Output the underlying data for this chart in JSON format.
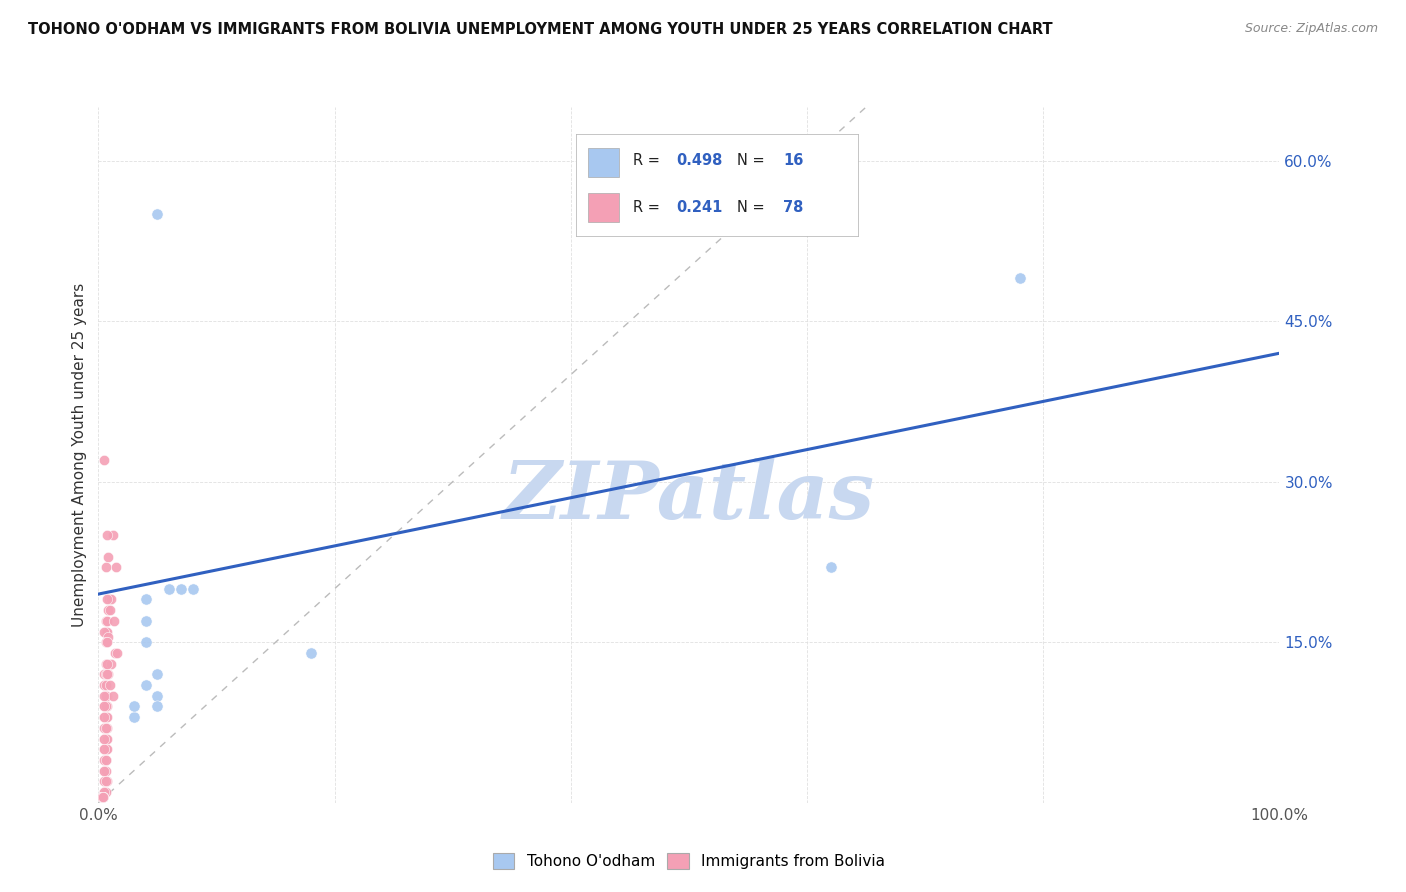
{
  "title": "TOHONO O'ODHAM VS IMMIGRANTS FROM BOLIVIA UNEMPLOYMENT AMONG YOUTH UNDER 25 YEARS CORRELATION CHART",
  "source": "Source: ZipAtlas.com",
  "ylabel": "Unemployment Among Youth under 25 years",
  "legend_blue_label": "Tohono O'odham",
  "legend_pink_label": "Immigrants from Bolivia",
  "legend_blue_R": "0.498",
  "legend_blue_N": "16",
  "legend_pink_R": "0.241",
  "legend_pink_N": "78",
  "xlim": [
    0,
    1.0
  ],
  "ylim": [
    0,
    0.65
  ],
  "xticks": [
    0.0,
    0.2,
    0.4,
    0.6,
    0.8,
    1.0
  ],
  "yticks": [
    0.0,
    0.15,
    0.3,
    0.45,
    0.6
  ],
  "xtick_labels_show": [
    "0.0%",
    "100.0%"
  ],
  "xtick_show_positions": [
    0.0,
    1.0
  ],
  "ytick_labels": [
    "",
    "15.0%",
    "30.0%",
    "45.0%",
    "60.0%"
  ],
  "blue_scatter_x": [
    0.05,
    0.78,
    0.04,
    0.18,
    0.62,
    0.04,
    0.07,
    0.08,
    0.05,
    0.03,
    0.04,
    0.05,
    0.03,
    0.05,
    0.06,
    0.04
  ],
  "blue_scatter_y": [
    0.55,
    0.49,
    0.15,
    0.14,
    0.22,
    0.19,
    0.2,
    0.2,
    0.1,
    0.08,
    0.11,
    0.09,
    0.09,
    0.12,
    0.2,
    0.17
  ],
  "pink_scatter_x": [
    0.005,
    0.012,
    0.007,
    0.008,
    0.015,
    0.006,
    0.009,
    0.011,
    0.007,
    0.008,
    0.01,
    0.006,
    0.007,
    0.013,
    0.006,
    0.007,
    0.005,
    0.008,
    0.006,
    0.007,
    0.014,
    0.016,
    0.006,
    0.011,
    0.007,
    0.005,
    0.006,
    0.008,
    0.007,
    0.005,
    0.006,
    0.01,
    0.007,
    0.006,
    0.012,
    0.005,
    0.006,
    0.007,
    0.005,
    0.006,
    0.005,
    0.006,
    0.005,
    0.007,
    0.005,
    0.006,
    0.005,
    0.007,
    0.006,
    0.005,
    0.006,
    0.007,
    0.005,
    0.006,
    0.005,
    0.007,
    0.005,
    0.006,
    0.005,
    0.006,
    0.005,
    0.006,
    0.005,
    0.007,
    0.005,
    0.006,
    0.005,
    0.006,
    0.005,
    0.004,
    0.003,
    0.004,
    0.003,
    0.004,
    0.003,
    0.004,
    0.003,
    0.004
  ],
  "pink_scatter_y": [
    0.32,
    0.25,
    0.25,
    0.23,
    0.22,
    0.22,
    0.19,
    0.19,
    0.19,
    0.18,
    0.18,
    0.17,
    0.17,
    0.17,
    0.16,
    0.16,
    0.16,
    0.155,
    0.15,
    0.15,
    0.14,
    0.14,
    0.13,
    0.13,
    0.13,
    0.12,
    0.12,
    0.12,
    0.12,
    0.11,
    0.11,
    0.11,
    0.1,
    0.1,
    0.1,
    0.1,
    0.09,
    0.09,
    0.09,
    0.09,
    0.09,
    0.08,
    0.08,
    0.08,
    0.08,
    0.07,
    0.07,
    0.07,
    0.07,
    0.06,
    0.06,
    0.06,
    0.06,
    0.05,
    0.05,
    0.05,
    0.05,
    0.04,
    0.04,
    0.04,
    0.03,
    0.03,
    0.03,
    0.02,
    0.02,
    0.02,
    0.01,
    0.01,
    0.01,
    0.005,
    0.005,
    0.005,
    0.005,
    0.005,
    0.005,
    0.005,
    0.005,
    0.005
  ],
  "blue_line_x": [
    0.0,
    1.0
  ],
  "blue_line_y": [
    0.195,
    0.42
  ],
  "diag_line_x": [
    0.0,
    0.65
  ],
  "diag_line_y": [
    0.0,
    0.65
  ],
  "blue_scatter_color": "#A8C8F0",
  "pink_scatter_color": "#F4A0B5",
  "blue_line_color": "#3060C0",
  "diag_line_color": "#BBBBBB",
  "background_color": "#FFFFFF",
  "watermark_text": "ZIPatlas",
  "watermark_color": "#C8D8F0",
  "grid_color": "#E0E0E0",
  "title_color": "#111111",
  "source_color": "#888888",
  "ylabel_color": "#333333",
  "ytick_color": "#3060C0",
  "xtick_color": "#555555"
}
